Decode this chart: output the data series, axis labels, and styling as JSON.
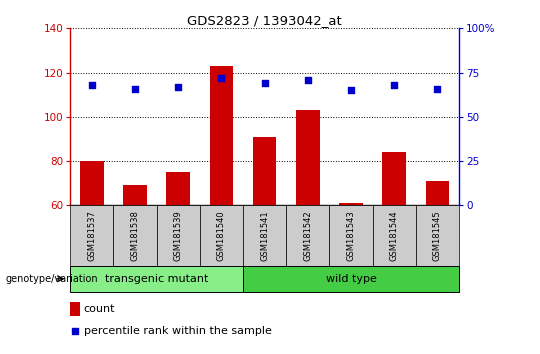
{
  "title": "GDS2823 / 1393042_at",
  "samples": [
    "GSM181537",
    "GSM181538",
    "GSM181539",
    "GSM181540",
    "GSM181541",
    "GSM181542",
    "GSM181543",
    "GSM181544",
    "GSM181545"
  ],
  "counts": [
    80,
    69,
    75,
    123,
    91,
    103,
    61,
    84,
    71
  ],
  "percentile_ranks": [
    68,
    66,
    67,
    72,
    69,
    71,
    65,
    68,
    66
  ],
  "ylim_left": [
    60,
    140
  ],
  "ylim_right": [
    0,
    100
  ],
  "yticks_left": [
    60,
    80,
    100,
    120,
    140
  ],
  "yticks_right": [
    0,
    25,
    50,
    75,
    100
  ],
  "yticklabels_right": [
    "0",
    "25",
    "50",
    "75",
    "100%"
  ],
  "bar_color": "#cc0000",
  "dot_color": "#0000cc",
  "bar_bottom": 60,
  "groups": [
    {
      "label": "transgenic mutant",
      "start": 0,
      "end": 3,
      "color": "#88ee88"
    },
    {
      "label": "wild type",
      "start": 4,
      "end": 8,
      "color": "#44cc44"
    }
  ],
  "group_label": "genotype/variation",
  "legend_count_label": "count",
  "legend_percentile_label": "percentile rank within the sample",
  "axis_left_color": "#cc0000",
  "axis_right_color": "#0000cc",
  "sample_bg_color": "#cccccc"
}
